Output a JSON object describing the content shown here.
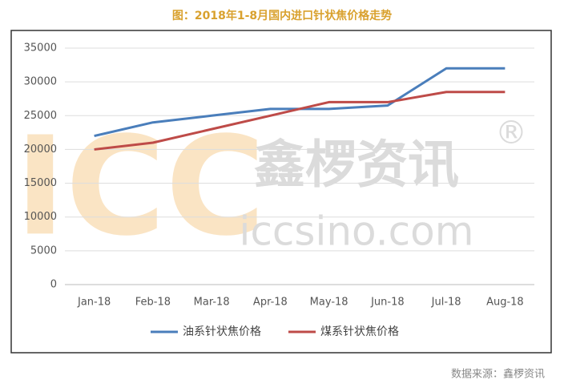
{
  "chart_data": {
    "type": "line",
    "title": "图：2018年1-8月国内进口针状焦价格走势",
    "categories": [
      "Jan-18",
      "Feb-18",
      "Mar-18",
      "Apr-18",
      "May-18",
      "Jun-18",
      "Jul-18",
      "Aug-18"
    ],
    "series": [
      {
        "name": "油系针状焦价格",
        "color": "#4a7ebb",
        "values": [
          22000,
          24000,
          25000,
          26000,
          26000,
          26500,
          32000,
          32000
        ]
      },
      {
        "name": "煤系针状焦价格",
        "color": "#be4b48",
        "values": [
          20000,
          21000,
          23000,
          25000,
          27000,
          27000,
          28500,
          28500
        ]
      }
    ],
    "ylim": [
      0,
      35000
    ],
    "yticks": [
      0,
      5000,
      10000,
      15000,
      20000,
      25000,
      30000,
      35000
    ],
    "grid": true,
    "legend": "bottom",
    "watermark": [
      "ICC",
      "鑫椤资讯",
      "iccsino.com"
    ],
    "source": "数据来源：鑫椤资讯"
  }
}
